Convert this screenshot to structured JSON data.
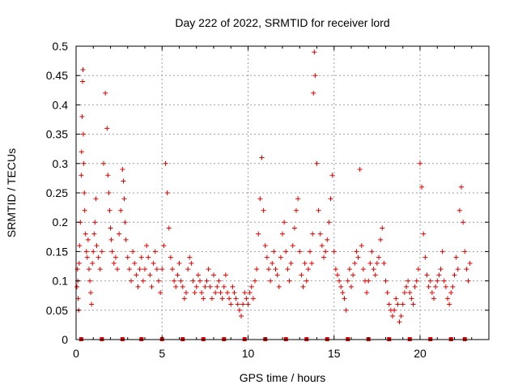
{
  "chart_data": {
    "type": "scatter",
    "title": "Day 222 of 2022, SRMTID for receiver lord",
    "xlabel": "GPS time / hours",
    "ylabel": "SRMTID / TECUs",
    "xlim": [
      0,
      24
    ],
    "ylim": [
      0,
      0.5
    ],
    "xticks": [
      0,
      5,
      10,
      15,
      20
    ],
    "xtick_labels": [
      "0",
      "5",
      "10",
      "15",
      "20"
    ],
    "yticks": [
      0,
      0.05,
      0.1,
      0.15,
      0.2,
      0.25,
      0.3,
      0.35,
      0.4,
      0.45,
      0.5
    ],
    "ytick_labels": [
      "0",
      "0.05",
      "0.1",
      "0.15",
      "0.2",
      "0.25",
      "0.3",
      "0.35",
      "0.4",
      "0.45",
      "0.5"
    ],
    "grid": true,
    "marker_color": "#e00000",
    "marker": "+",
    "series": [
      {
        "name": "SRMTID",
        "x": [
          0.05,
          0.08,
          0.1,
          0.12,
          0.15,
          0.18,
          0.2,
          0.25,
          0.3,
          0.32,
          0.35,
          0.38,
          0.4,
          0.42,
          0.45,
          0.48,
          0.5,
          0.55,
          0.6,
          0.65,
          0.7,
          0.75,
          0.8,
          0.85,
          0.9,
          0.95,
          1.0,
          1.05,
          1.1,
          1.15,
          1.2,
          1.3,
          1.4,
          1.5,
          1.6,
          1.7,
          1.8,
          1.85,
          1.9,
          1.95,
          2.0,
          2.05,
          2.1,
          2.2,
          2.3,
          2.4,
          2.5,
          2.6,
          2.7,
          2.75,
          2.8,
          2.85,
          2.9,
          3.0,
          3.1,
          3.2,
          3.3,
          3.4,
          3.5,
          3.6,
          3.7,
          3.8,
          3.9,
          4.0,
          4.1,
          4.2,
          4.3,
          4.4,
          4.5,
          4.6,
          4.7,
          4.8,
          4.9,
          5.0,
          5.1,
          5.2,
          5.3,
          5.4,
          5.5,
          5.6,
          5.7,
          5.8,
          5.9,
          6.0,
          6.1,
          6.2,
          6.3,
          6.4,
          6.5,
          6.6,
          6.7,
          6.8,
          6.9,
          7.0,
          7.1,
          7.2,
          7.3,
          7.4,
          7.5,
          7.6,
          7.7,
          7.8,
          7.9,
          8.0,
          8.1,
          8.2,
          8.3,
          8.4,
          8.5,
          8.6,
          8.7,
          8.8,
          8.9,
          9.0,
          9.1,
          9.2,
          9.3,
          9.4,
          9.5,
          9.6,
          9.7,
          9.8,
          9.9,
          10.0,
          10.1,
          10.2,
          10.3,
          10.4,
          10.5,
          10.6,
          10.7,
          10.8,
          10.9,
          11.0,
          11.1,
          11.2,
          11.3,
          11.4,
          11.5,
          11.6,
          11.7,
          11.8,
          11.9,
          12.0,
          12.1,
          12.2,
          12.3,
          12.4,
          12.5,
          12.6,
          12.7,
          12.8,
          12.9,
          13.0,
          13.1,
          13.2,
          13.3,
          13.4,
          13.5,
          13.6,
          13.7,
          13.75,
          13.8,
          13.85,
          13.9,
          14.0,
          14.1,
          14.2,
          14.3,
          14.4,
          14.5,
          14.6,
          14.7,
          14.8,
          14.9,
          15.0,
          15.1,
          15.2,
          15.3,
          15.4,
          15.5,
          15.6,
          15.7,
          15.8,
          15.9,
          16.0,
          16.1,
          16.2,
          16.3,
          16.4,
          16.5,
          16.6,
          16.7,
          16.8,
          16.9,
          17.0,
          17.1,
          17.2,
          17.3,
          17.4,
          17.5,
          17.6,
          17.7,
          17.8,
          17.9,
          18.0,
          18.1,
          18.2,
          18.3,
          18.4,
          18.5,
          18.6,
          18.7,
          18.8,
          18.9,
          19.0,
          19.1,
          19.2,
          19.3,
          19.4,
          19.5,
          19.6,
          19.7,
          19.8,
          19.9,
          20.0,
          20.1,
          20.2,
          20.3,
          20.4,
          20.5,
          20.6,
          20.7,
          20.8,
          20.9,
          21.0,
          21.1,
          21.2,
          21.3,
          21.4,
          21.5,
          21.6,
          21.7,
          21.8,
          21.9,
          22.0,
          22.1,
          22.2,
          22.3,
          22.4,
          22.5,
          22.6,
          22.7,
          22.8,
          22.9
        ],
        "y": [
          0.09,
          0.12,
          0.1,
          0.07,
          0.05,
          0.13,
          0.16,
          0.2,
          0.28,
          0.32,
          0.38,
          0.44,
          0.46,
          0.35,
          0.3,
          0.25,
          0.22,
          0.18,
          0.15,
          0.14,
          0.17,
          0.12,
          0.1,
          0.08,
          0.06,
          0.13,
          0.15,
          0.18,
          0.2,
          0.24,
          0.16,
          0.14,
          0.12,
          0.15,
          0.3,
          0.42,
          0.36,
          0.28,
          0.25,
          0.22,
          0.19,
          0.17,
          0.15,
          0.13,
          0.14,
          0.12,
          0.18,
          0.22,
          0.29,
          0.27,
          0.24,
          0.2,
          0.17,
          0.14,
          0.12,
          0.1,
          0.15,
          0.13,
          0.11,
          0.09,
          0.12,
          0.14,
          0.1,
          0.12,
          0.16,
          0.14,
          0.11,
          0.09,
          0.13,
          0.15,
          0.12,
          0.1,
          0.08,
          0.12,
          0.16,
          0.3,
          0.25,
          0.19,
          0.14,
          0.12,
          0.1,
          0.09,
          0.11,
          0.13,
          0.1,
          0.09,
          0.07,
          0.08,
          0.12,
          0.14,
          0.13,
          0.1,
          0.08,
          0.09,
          0.11,
          0.1,
          0.08,
          0.07,
          0.09,
          0.1,
          0.12,
          0.09,
          0.07,
          0.11,
          0.08,
          0.09,
          0.1,
          0.08,
          0.07,
          0.09,
          0.11,
          0.08,
          0.07,
          0.06,
          0.09,
          0.08,
          0.07,
          0.06,
          0.05,
          0.04,
          0.06,
          0.08,
          0.07,
          0.06,
          0.08,
          0.09,
          0.07,
          0.1,
          0.12,
          0.18,
          0.24,
          0.31,
          0.22,
          0.16,
          0.14,
          0.12,
          0.1,
          0.13,
          0.15,
          0.12,
          0.11,
          0.09,
          0.14,
          0.18,
          0.2,
          0.15,
          0.12,
          0.1,
          0.13,
          0.16,
          0.19,
          0.22,
          0.24,
          0.15,
          0.11,
          0.09,
          0.13,
          0.1,
          0.12,
          0.15,
          0.13,
          0.18,
          0.42,
          0.49,
          0.45,
          0.3,
          0.22,
          0.18,
          0.16,
          0.14,
          0.15,
          0.17,
          0.2,
          0.24,
          0.28,
          0.15,
          0.12,
          0.11,
          0.1,
          0.09,
          0.08,
          0.07,
          0.05,
          0.1,
          0.12,
          0.09,
          0.11,
          0.13,
          0.15,
          0.14,
          0.29,
          0.16,
          0.12,
          0.1,
          0.08,
          0.1,
          0.13,
          0.15,
          0.12,
          0.11,
          0.13,
          0.14,
          0.17,
          0.19,
          0.13,
          0.1,
          0.08,
          0.06,
          0.05,
          0.04,
          0.05,
          0.07,
          0.06,
          0.03,
          0.04,
          0.06,
          0.08,
          0.09,
          0.1,
          0.08,
          0.07,
          0.06,
          0.09,
          0.1,
          0.12,
          0.3,
          0.26,
          0.18,
          0.14,
          0.11,
          0.09,
          0.1,
          0.08,
          0.07,
          0.09,
          0.1,
          0.11,
          0.12,
          0.15,
          0.1,
          0.09,
          0.07,
          0.06,
          0.08,
          0.09,
          0.11,
          0.14,
          0.12,
          0.22,
          0.26,
          0.2,
          0.15,
          0.12,
          0.1,
          0.13
        ]
      }
    ],
    "zero_markers_x": [
      0.3,
      1.5,
      2.7,
      3.8,
      5.0,
      6.2,
      7.4,
      8.6,
      9.8,
      11.0,
      12.2,
      13.4,
      14.6,
      15.8,
      17.0,
      18.2,
      19.4,
      20.6,
      21.8,
      22.6
    ]
  }
}
